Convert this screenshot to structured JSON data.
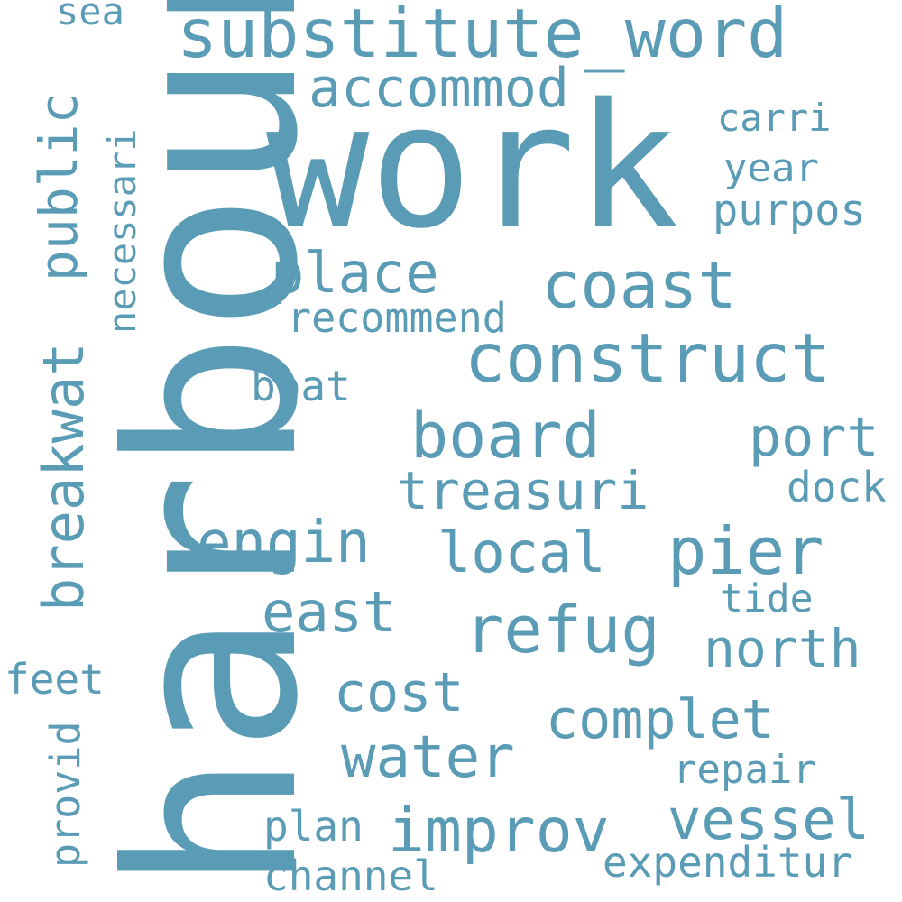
{
  "cloud": {
    "color": "#5a9cb5",
    "words": [
      {
        "text": "harbour"
      },
      {
        "text": "work"
      },
      {
        "text": "substitute_word"
      },
      {
        "text": "accommod"
      },
      {
        "text": "construct"
      },
      {
        "text": "coast"
      },
      {
        "text": "place"
      },
      {
        "text": "public"
      },
      {
        "text": "breakwat"
      },
      {
        "text": "board"
      },
      {
        "text": "pier"
      },
      {
        "text": "refug"
      },
      {
        "text": "port"
      },
      {
        "text": "treasuri"
      },
      {
        "text": "engin"
      },
      {
        "text": "local"
      },
      {
        "text": "east"
      },
      {
        "text": "north"
      },
      {
        "text": "cost"
      },
      {
        "text": "complet"
      },
      {
        "text": "water"
      },
      {
        "text": "improv"
      },
      {
        "text": "vessel"
      },
      {
        "text": "recommend"
      },
      {
        "text": "necessari"
      },
      {
        "text": "carri"
      },
      {
        "text": "year"
      },
      {
        "text": "purpos"
      },
      {
        "text": "boat"
      },
      {
        "text": "dock"
      },
      {
        "text": "tide"
      },
      {
        "text": "feet"
      },
      {
        "text": "provid"
      },
      {
        "text": "repair"
      },
      {
        "text": "plan"
      },
      {
        "text": "channel"
      },
      {
        "text": "expenditur"
      },
      {
        "text": "sea"
      }
    ]
  }
}
